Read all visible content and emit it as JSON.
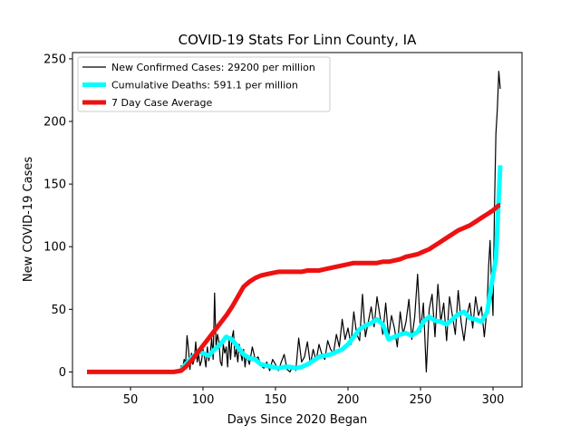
{
  "chart_data": {
    "type": "line",
    "title": "COVID-19 Stats For Linn County, IA",
    "xlabel": "Days Since 2020 Began",
    "ylabel": "New COVID-19 Cases",
    "xlim": [
      10,
      320
    ],
    "ylim": [
      -12,
      255
    ],
    "x_ticks": [
      50,
      100,
      150,
      200,
      250,
      300
    ],
    "y_ticks": [
      0,
      50,
      100,
      150,
      200,
      250
    ],
    "grid": false,
    "legend_position": "top-left",
    "series": [
      {
        "name": "New Confirmed Cases: 29200 per million",
        "color": "#000000",
        "style": "thin",
        "x": [
          20,
          30,
          40,
          50,
          60,
          70,
          80,
          84,
          85,
          86,
          87,
          88,
          89,
          90,
          91,
          92,
          93,
          94,
          95,
          96,
          97,
          98,
          99,
          100,
          101,
          102,
          103,
          104,
          105,
          106,
          107,
          108,
          109,
          110,
          111,
          112,
          113,
          114,
          115,
          116,
          117,
          118,
          119,
          120,
          121,
          122,
          123,
          124,
          125,
          126,
          127,
          128,
          129,
          130,
          132,
          134,
          136,
          138,
          140,
          142,
          144,
          146,
          148,
          150,
          152,
          154,
          156,
          158,
          160,
          162,
          164,
          166,
          168,
          170,
          172,
          174,
          176,
          178,
          180,
          182,
          184,
          186,
          188,
          190,
          192,
          194,
          196,
          198,
          200,
          202,
          204,
          206,
          208,
          210,
          212,
          214,
          216,
          218,
          220,
          222,
          224,
          226,
          228,
          230,
          232,
          234,
          236,
          238,
          240,
          242,
          244,
          246,
          248,
          250,
          252,
          254,
          256,
          258,
          260,
          262,
          264,
          266,
          268,
          270,
          272,
          274,
          276,
          278,
          280,
          282,
          284,
          286,
          288,
          290,
          292,
          294,
          295,
          296,
          297,
          298,
          299,
          300,
          301,
          302,
          303,
          304,
          305
        ],
        "y": [
          0,
          0,
          0,
          0,
          0,
          0,
          0,
          0,
          5,
          3,
          10,
          7,
          29,
          18,
          2,
          15,
          6,
          10,
          24,
          8,
          14,
          5,
          9,
          18,
          12,
          4,
          20,
          9,
          15,
          27,
          10,
          63,
          20,
          30,
          24,
          8,
          5,
          22,
          15,
          20,
          4,
          28,
          10,
          27,
          33,
          12,
          18,
          8,
          22,
          15,
          9,
          18,
          4,
          14,
          6,
          20,
          10,
          12,
          5,
          3,
          8,
          1,
          10,
          6,
          1,
          8,
          14,
          2,
          0,
          5,
          1,
          27,
          8,
          12,
          24,
          6,
          18,
          9,
          22,
          14,
          10,
          25,
          18,
          15,
          30,
          20,
          42,
          26,
          35,
          22,
          48,
          30,
          25,
          62,
          28,
          40,
          52,
          36,
          60,
          45,
          30,
          55,
          28,
          45,
          35,
          20,
          48,
          30,
          40,
          58,
          26,
          44,
          78,
          32,
          55,
          0,
          50,
          62,
          28,
          70,
          40,
          55,
          25,
          60,
          45,
          30,
          65,
          40,
          25,
          45,
          55,
          35,
          60,
          45,
          52,
          28,
          40,
          55,
          85,
          105,
          70,
          45,
          130,
          190,
          210,
          240,
          226
        ]
      },
      {
        "name": "Cumulative Deaths: 591.1 per million",
        "color": "#00ffff",
        "style": "thick",
        "x": [
          85,
          88,
          91,
          94,
          97,
          100,
          104,
          108,
          112,
          116,
          120,
          124,
          128,
          132,
          136,
          140,
          144,
          148,
          152,
          156,
          160,
          164,
          168,
          172,
          176,
          180,
          184,
          188,
          192,
          196,
          200,
          204,
          208,
          212,
          216,
          220,
          224,
          228,
          232,
          236,
          240,
          244,
          248,
          252,
          256,
          260,
          264,
          268,
          272,
          276,
          280,
          284,
          288,
          292,
          296,
          299,
          302,
          304,
          305
        ],
        "y": [
          2,
          6,
          10,
          13,
          16,
          15,
          13,
          18,
          22,
          28,
          26,
          20,
          14,
          11,
          10,
          6,
          5,
          4,
          3,
          4,
          4,
          3,
          4,
          6,
          9,
          12,
          13,
          14,
          16,
          18,
          22,
          28,
          34,
          37,
          39,
          42,
          38,
          26,
          28,
          30,
          31,
          29,
          32,
          40,
          44,
          41,
          40,
          38,
          42,
          46,
          48,
          43,
          42,
          40,
          48,
          70,
          90,
          140,
          165
        ]
      },
      {
        "name": "7 Day Case Average",
        "color": "#ee1111",
        "style": "thick",
        "x": [
          20,
          40,
          60,
          80,
          85,
          88,
          92,
          96,
          100,
          104,
          108,
          112,
          116,
          120,
          124,
          128,
          132,
          136,
          140,
          144,
          148,
          152,
          156,
          160,
          164,
          168,
          172,
          176,
          180,
          184,
          188,
          192,
          196,
          200,
          204,
          208,
          212,
          216,
          220,
          224,
          228,
          232,
          236,
          240,
          244,
          248,
          252,
          256,
          260,
          264,
          268,
          272,
          276,
          280,
          284,
          288,
          292,
          296,
          300,
          304,
          305
        ],
        "y": [
          0,
          0,
          0,
          0,
          1,
          4,
          9,
          15,
          21,
          27,
          33,
          39,
          45,
          52,
          60,
          68,
          72,
          75,
          77,
          78,
          79,
          80,
          80,
          80,
          80,
          80,
          81,
          81,
          81,
          82,
          83,
          84,
          85,
          86,
          87,
          87,
          87,
          87,
          87,
          88,
          88,
          89,
          90,
          92,
          93,
          94,
          96,
          98,
          101,
          104,
          107,
          110,
          113,
          115,
          117,
          120,
          123,
          126,
          129,
          133,
          133
        ]
      }
    ]
  }
}
